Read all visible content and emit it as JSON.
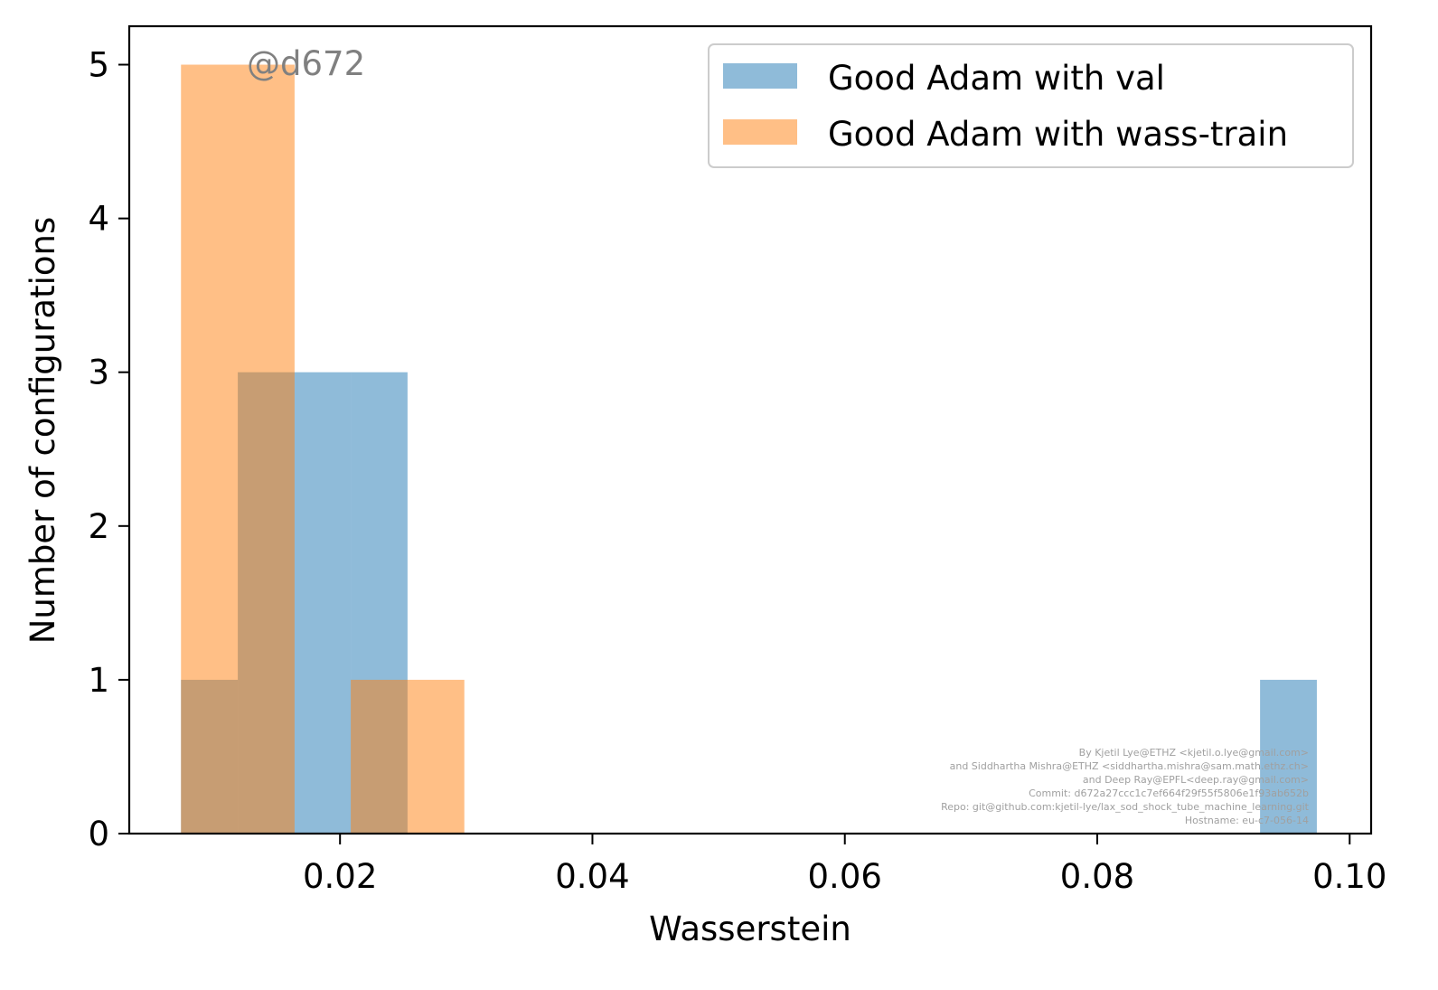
{
  "chart_data": {
    "type": "bar",
    "subtype": "overlaid-histogram",
    "xlabel": "Wasserstein",
    "ylabel": "Number of configurations",
    "xlim": [
      0.0033,
      0.1017
    ],
    "ylim": [
      0,
      5.25
    ],
    "xticks": [
      0.02,
      0.04,
      0.06,
      0.08,
      0.1
    ],
    "xtick_labels": [
      "0.02",
      "0.04",
      "0.06",
      "0.08",
      "0.10"
    ],
    "yticks": [
      0,
      1,
      2,
      3,
      4,
      5
    ],
    "ytick_labels": [
      "0",
      "1",
      "2",
      "3",
      "4",
      "5"
    ],
    "grid": false,
    "legend_position": "top-right",
    "series": [
      {
        "name": "Good Adam with val",
        "color": "#1f77b4",
        "opacity": 0.5,
        "bins": [
          {
            "x0": 0.0074,
            "x1": 0.0119,
            "count": 1
          },
          {
            "x0": 0.0119,
            "x1": 0.0164,
            "count": 3
          },
          {
            "x0": 0.0164,
            "x1": 0.02085,
            "count": 3
          },
          {
            "x0": 0.02085,
            "x1": 0.02535,
            "count": 3
          },
          {
            "x0": 0.0929,
            "x1": 0.0974,
            "count": 1
          }
        ]
      },
      {
        "name": "Good Adam with wass-train",
        "color": "#ff7f0e",
        "opacity": 0.5,
        "bins": [
          {
            "x0": 0.0074,
            "x1": 0.0164,
            "count": 5
          },
          {
            "x0": 0.02085,
            "x1": 0.02985,
            "count": 1
          }
        ]
      }
    ],
    "watermark": "@d672",
    "credits": [
      "By Kjetil Lye@ETHZ <kjetil.o.lye@gmail.com>",
      "and Siddhartha Mishra@ETHZ <siddhartha.mishra@sam.math.ethz.ch>",
      "and Deep Ray@EPFL<deep.ray@gmail.com>",
      "Commit: d672a27ccc1c7ef664f29f55f5806e1f93ab652b",
      "Repo: git@github.com:kjetil-lye/lax_sod_shock_tube_machine_learning.git",
      "Hostname: eu-c7-056-14"
    ]
  }
}
